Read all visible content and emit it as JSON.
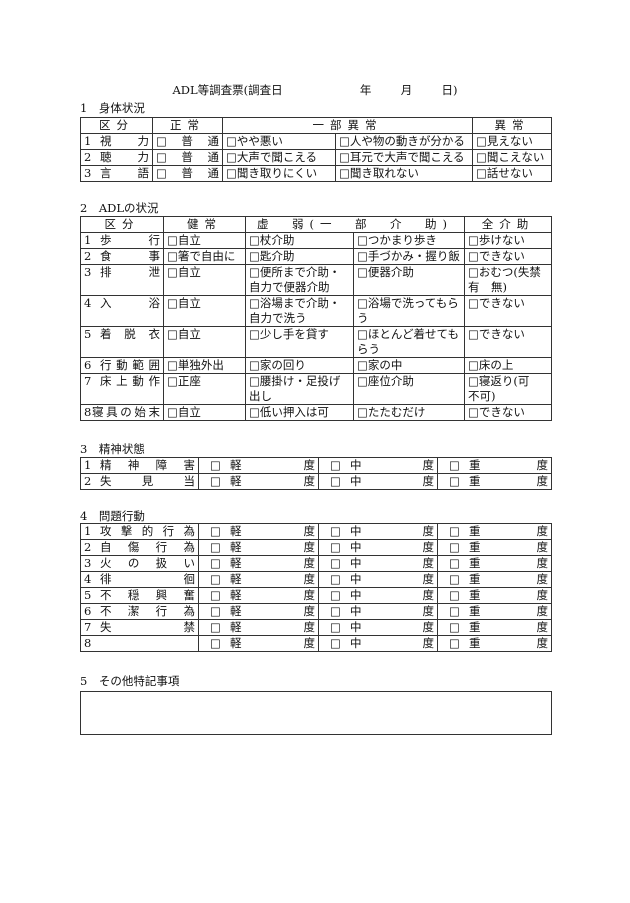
{
  "title": {
    "main": "ADL等調査票(調査日",
    "year": "年",
    "month": "月",
    "day": "日)"
  },
  "section1": {
    "heading": "1　身体状況",
    "headers": [
      "区分",
      "正常",
      "一部異常",
      "異常"
    ],
    "rows": [
      {
        "num": "1",
        "name": "視力",
        "normal": "□普通",
        "partial1": "□やや悪い",
        "partial2": "□人や物の動きが分かる",
        "abnormal": "□見えない"
      },
      {
        "num": "2",
        "name": "聴力",
        "normal": "□普通",
        "partial1": "□大声で聞こえる",
        "partial2": "□耳元で大声で聞こえる",
        "abnormal": "□聞こえない"
      },
      {
        "num": "3",
        "name": "言語",
        "normal": "□普通",
        "partial1": "□聞き取りにくい",
        "partial2": "□聞き取れない",
        "abnormal": "□話せない"
      }
    ]
  },
  "section2": {
    "heading": "2　ADLの状況",
    "headers": [
      "区分",
      "健常",
      "虚　弱(一　部　介　助)",
      "全介助"
    ],
    "rows": [
      {
        "num": "1",
        "name": "歩行",
        "healthy": "□自立",
        "weak1": "□杖介助",
        "weak2": "□つかまり歩き",
        "full": "□歩けない"
      },
      {
        "num": "2",
        "name": "食事",
        "healthy": "□箸で自由に",
        "weak1": "□匙介助",
        "weak2": "□手づかみ・握り飯",
        "full": "□できない"
      },
      {
        "num": "3",
        "name": "排泄",
        "healthy": "□自立",
        "weak1": "□便所まで介助・自力で便器介助",
        "weak2": "□便器介助",
        "full": "□おむつ(失禁 有　無)"
      },
      {
        "num": "4",
        "name": "入浴",
        "healthy": "□自立",
        "weak1": "□浴場まで介助・自力で洗う",
        "weak2": "□浴場で洗ってもらう",
        "full": "□できない"
      },
      {
        "num": "5",
        "name": "着脱衣",
        "healthy": "□自立",
        "weak1": "□少し手を貸す",
        "weak2": "□ほとんど着せてもらう",
        "full": "□できない"
      },
      {
        "num": "6",
        "name": "行動範囲",
        "healthy": "□単独外出",
        "weak1": "□家の回り",
        "weak2": "□家の中",
        "full": "□床の上"
      },
      {
        "num": "7",
        "name": "床上動作",
        "healthy": "□正座",
        "weak1": "□腰掛け・足投げ出し",
        "weak2": "□座位介助",
        "full": "□寝返り(可　不可)"
      },
      {
        "num": "8",
        "name": "寝具の始末",
        "healthy": "□自立",
        "weak1": "□低い押入は可",
        "weak2": "□たたむだけ",
        "full": "□できない"
      }
    ]
  },
  "levels": {
    "box": "□",
    "labels": [
      "軽度",
      "中度",
      "重度"
    ]
  },
  "section3": {
    "heading": "3　精神状態",
    "rows": [
      {
        "num": "1",
        "name": "精神障害"
      },
      {
        "num": "2",
        "name": "失見当"
      }
    ]
  },
  "section4": {
    "heading": "4　問題行動",
    "rows": [
      {
        "num": "1",
        "name": "攻撃的行為"
      },
      {
        "num": "2",
        "name": "自傷行為"
      },
      {
        "num": "3",
        "name": "火の扱い"
      },
      {
        "num": "4",
        "name": "徘徊"
      },
      {
        "num": "5",
        "name": "不穏興奮"
      },
      {
        "num": "6",
        "name": "不潔行為"
      },
      {
        "num": "7",
        "name": "失禁"
      },
      {
        "num": "8",
        "name": ""
      }
    ]
  },
  "section5": {
    "heading": "5　その他特記事項",
    "notes": ""
  }
}
